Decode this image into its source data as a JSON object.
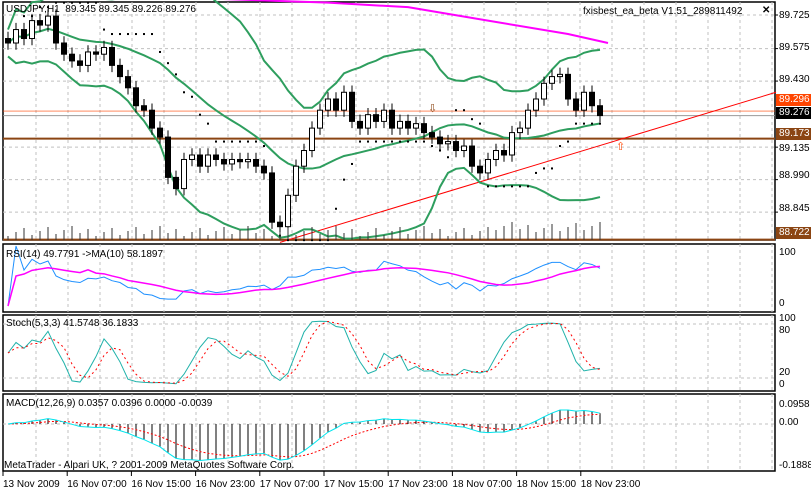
{
  "header": {
    "symbol": "USDJPY,H1",
    "ohlc": "89.345 89.345 89.226 89.276",
    "ea_label": "fxisbest_ea_beta V1.51_289811492",
    "close_icon": "x-icon"
  },
  "footer": {
    "copyright": "MetaTrader - Alpari UK, ? 2001-2009 MetaQuotes Software Corp."
  },
  "price_axis": {
    "ticks": [
      "89.725",
      "89.575",
      "89.430",
      "89.135",
      "88.990",
      "88.845"
    ],
    "current_price": "89.276",
    "ask_tag": "89.296",
    "levels": [
      "89.173",
      "88.722"
    ]
  },
  "colors": {
    "bands": "#2e9e5e",
    "ma": "#ff00ff",
    "trend": "#ff0000",
    "level": "#8b4513",
    "rsi": "#1e90ff",
    "stoch_main": "#20b2aa",
    "stoch_signal": "#ff0000",
    "macd_signal": "#ff0000",
    "macd_main": "#00e5ee"
  },
  "indicators": {
    "rsi": {
      "label": "RSI(14) 49.7791  ->MA(10) 58.1897",
      "ticks": [
        "100",
        "0"
      ]
    },
    "stoch": {
      "label": "Stoch(5,3,3) 41.5748 36.1833",
      "ticks": [
        "100",
        "80",
        "20",
        "0"
      ]
    },
    "macd": {
      "label": "MACD(12,26,9) 0.0357 0.0396 0.0000 -0.0039",
      "ticks": [
        "0.0958",
        "0.00",
        "-0.1888"
      ]
    }
  },
  "chart_data": {
    "type": "candlestick",
    "title": "USDJPY,H1",
    "ylim": [
      88.7,
      89.79
    ],
    "x_ticks": [
      "13 Nov 2009",
      "16 Nov 07:00",
      "16 Nov 15:00",
      "16 Nov 23:00",
      "17 Nov 07:00",
      "17 Nov 15:00",
      "17 Nov 23:00",
      "18 Nov 07:00",
      "18 Nov 15:00",
      "18 Nov 23:00"
    ],
    "closes": [
      89.6,
      89.66,
      89.62,
      89.7,
      89.68,
      89.72,
      89.6,
      89.55,
      89.52,
      89.5,
      89.56,
      89.55,
      89.58,
      89.5,
      89.45,
      89.4,
      89.32,
      89.3,
      89.22,
      89.18,
      89.0,
      88.95,
      89.08,
      89.1,
      89.05,
      89.1,
      89.08,
      89.06,
      89.08,
      89.07,
      89.08,
      89.05,
      89.02,
      88.8,
      88.78,
      88.92,
      89.05,
      89.12,
      89.22,
      89.3,
      89.35,
      89.3,
      89.38,
      89.25,
      89.22,
      89.28,
      89.25,
      89.3,
      89.22,
      89.25,
      89.22,
      89.24,
      89.2,
      89.18,
      89.15,
      89.16,
      89.12,
      89.14,
      89.05,
      89.02,
      89.08,
      89.12,
      89.1,
      89.2,
      89.22,
      89.3,
      89.35,
      89.42,
      89.45,
      89.46,
      89.35,
      89.3,
      89.38,
      89.32,
      89.276
    ],
    "ma_line": [
      [
        24,
        89.8
      ],
      [
        40,
        89.78
      ],
      [
        50,
        89.76
      ],
      [
        60,
        89.7
      ],
      [
        70,
        89.64
      ],
      [
        75,
        89.6
      ]
    ],
    "trendline": [
      [
        34,
        88.71
      ],
      [
        96,
        89.38
      ]
    ],
    "h_levels": [
      89.173,
      88.722
    ]
  }
}
